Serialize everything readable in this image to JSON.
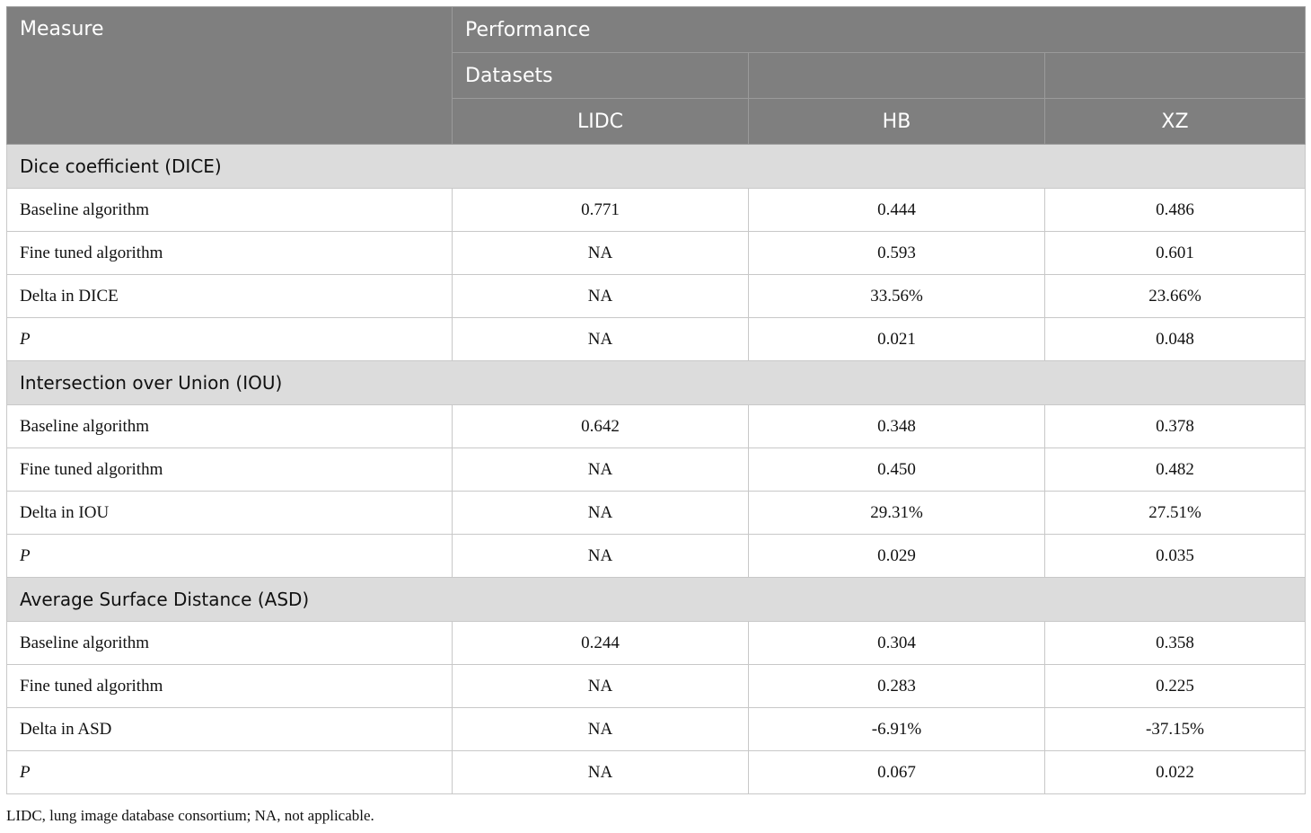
{
  "header": {
    "measure": "Measure",
    "performance": "Performance",
    "datasets": "Datasets",
    "columns": [
      "LIDC",
      "HB",
      "XZ"
    ]
  },
  "sections": [
    {
      "title": "Dice coefficient (DICE)",
      "rows": [
        {
          "label": "Baseline algorithm",
          "values": [
            "0.771",
            "0.444",
            "0.486"
          ]
        },
        {
          "label": "Fine tuned algorithm",
          "values": [
            "NA",
            "0.593",
            "0.601"
          ]
        },
        {
          "label": "Delta in DICE",
          "values": [
            "NA",
            "33.56%",
            "23.66%"
          ]
        },
        {
          "label": "P",
          "values": [
            "NA",
            "0.021",
            "0.048"
          ]
        }
      ]
    },
    {
      "title": "Intersection over Union (IOU)",
      "rows": [
        {
          "label": "Baseline algorithm",
          "values": [
            "0.642",
            "0.348",
            "0.378"
          ]
        },
        {
          "label": "Fine tuned algorithm",
          "values": [
            "NA",
            "0.450",
            "0.482"
          ]
        },
        {
          "label": "Delta in IOU",
          "values": [
            "NA",
            "29.31%",
            "27.51%"
          ]
        },
        {
          "label": "P",
          "values": [
            "NA",
            "0.029",
            "0.035"
          ]
        }
      ]
    },
    {
      "title": "Average Surface Distance (ASD)",
      "rows": [
        {
          "label": "Baseline algorithm",
          "values": [
            "0.244",
            "0.304",
            "0.358"
          ]
        },
        {
          "label": "Fine tuned algorithm",
          "values": [
            "NA",
            "0.283",
            "0.225"
          ]
        },
        {
          "label": "Delta in ASD",
          "values": [
            "NA",
            "-6.91%",
            "-37.15%"
          ]
        },
        {
          "label": "P",
          "values": [
            "NA",
            "0.067",
            "0.022"
          ]
        }
      ]
    }
  ],
  "footnote": "LIDC, lung image database consortium; NA, not applicable."
}
